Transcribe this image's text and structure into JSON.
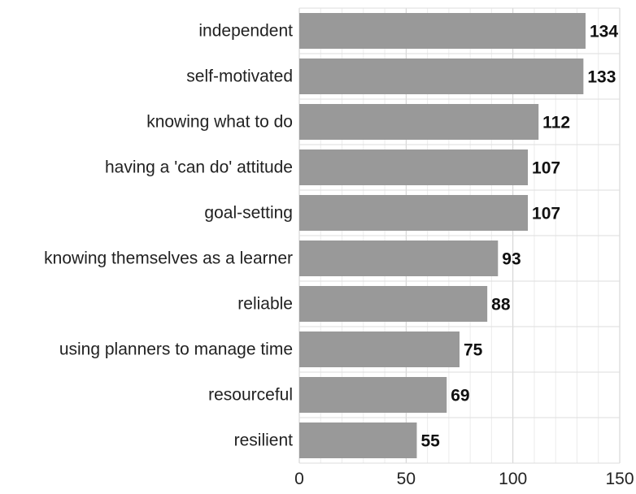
{
  "chart_data": {
    "type": "bar",
    "orientation": "horizontal",
    "title": "",
    "xlabel": "",
    "ylabel": "",
    "categories": [
      "independent",
      "self-motivated",
      "knowing what to do",
      "having a 'can do' attitude",
      "goal-setting",
      "knowing themselves as a learner",
      "reliable",
      "using planners to manage time",
      "resourceful",
      "resilient"
    ],
    "values": [
      134,
      133,
      112,
      107,
      107,
      93,
      88,
      75,
      69,
      55
    ],
    "value_labels": [
      "134",
      "133",
      "112",
      "107",
      "107",
      "93",
      "88",
      "75",
      "69",
      "55"
    ],
    "xlim": [
      0,
      150
    ],
    "xticks": [
      0,
      50,
      100,
      150
    ],
    "xtick_labels": [
      "0",
      "50",
      "100",
      "150"
    ],
    "grid": true,
    "bar_color": "#999999",
    "grid_color": "#dddddd",
    "legend": "none"
  }
}
